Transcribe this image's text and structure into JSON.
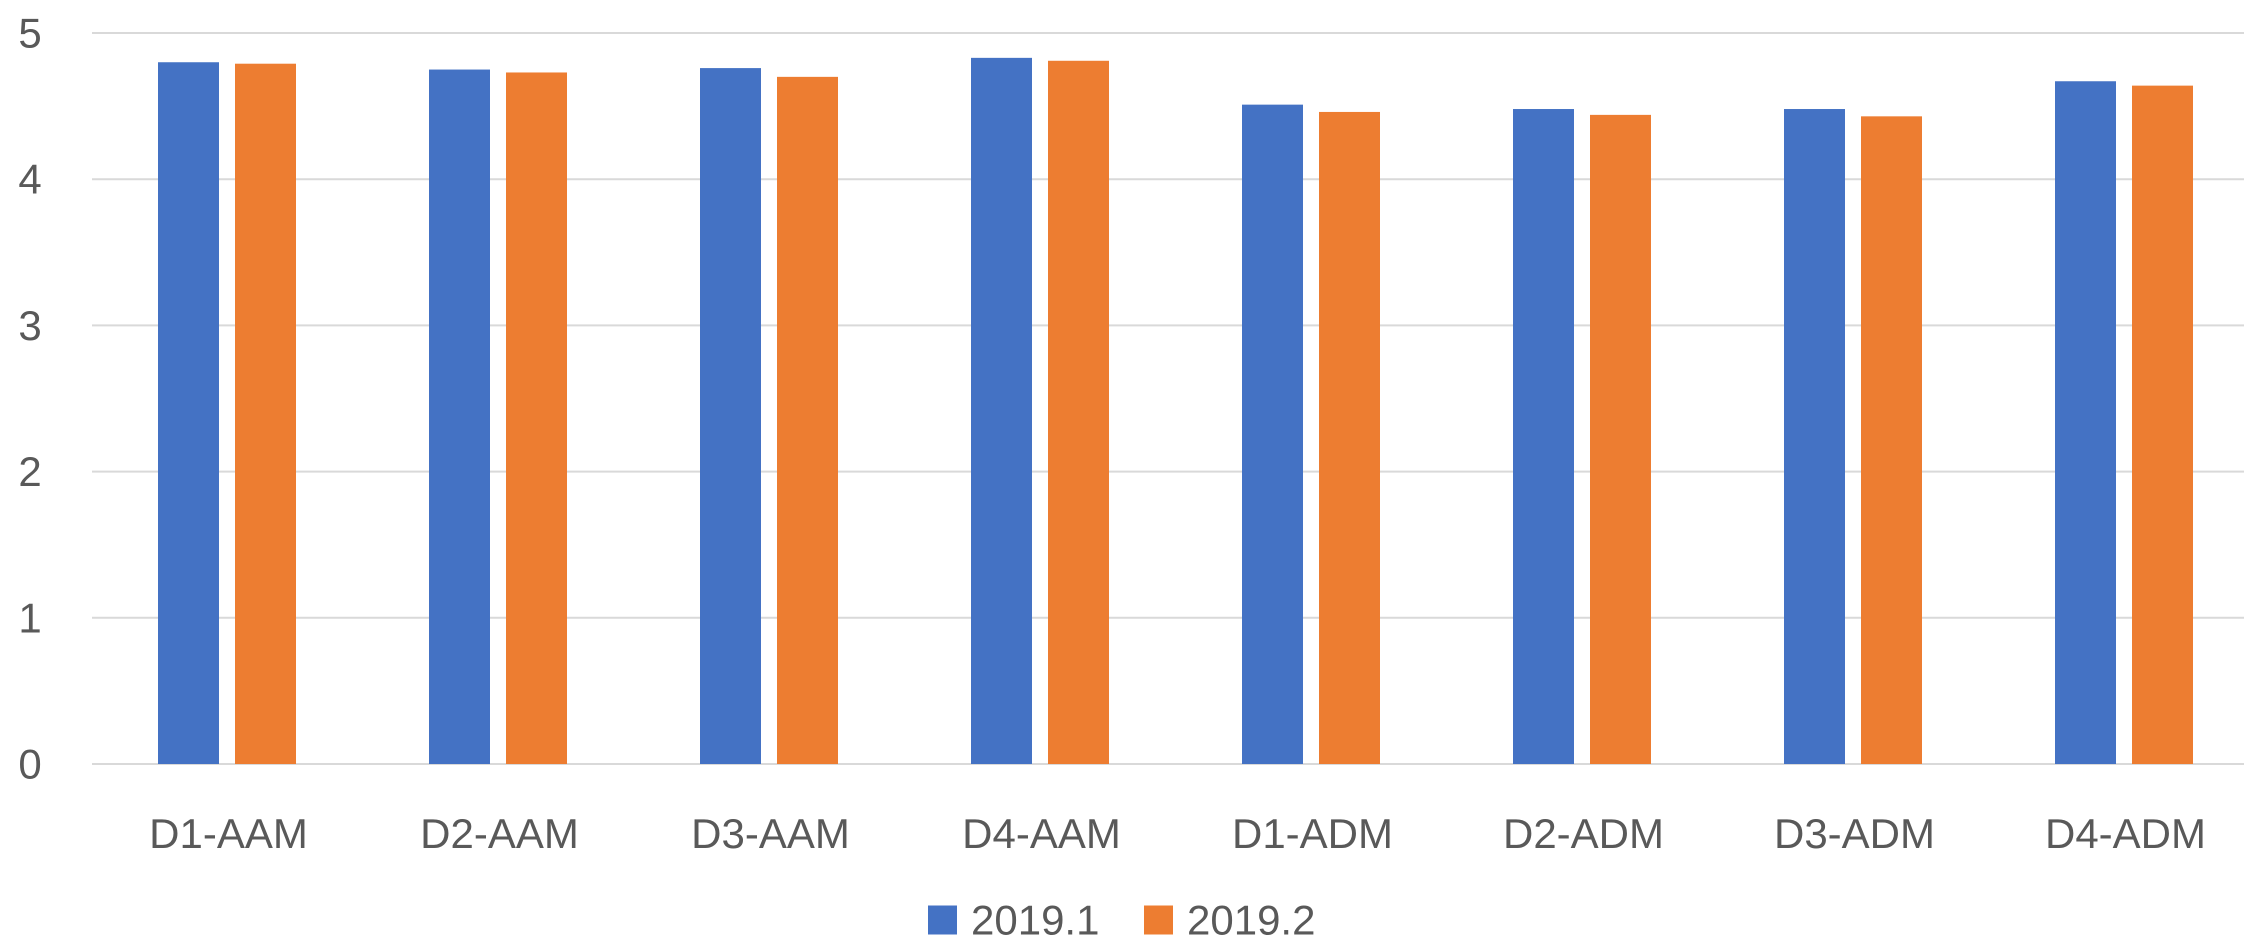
{
  "chart_data": {
    "type": "bar",
    "categories": [
      "D1-AAM",
      "D2-AAM",
      "D3-AAM",
      "D4-AAM",
      "D1-ADM",
      "D2-ADM",
      "D3-ADM",
      "D4-ADM"
    ],
    "series": [
      {
        "name": "2019.1",
        "color": "#4472c4",
        "values": [
          4.8,
          4.75,
          4.76,
          4.83,
          4.51,
          4.48,
          4.48,
          4.67
        ]
      },
      {
        "name": "2019.2",
        "color": "#ed7d31",
        "values": [
          4.79,
          4.73,
          4.7,
          4.81,
          4.46,
          4.44,
          4.43,
          4.64
        ]
      }
    ],
    "title": "",
    "xlabel": "",
    "ylabel": "",
    "ylim": [
      0,
      5
    ],
    "yticks": [
      "0",
      "1",
      "2",
      "3",
      "4",
      "5"
    ],
    "grid": true,
    "legend": "bottom"
  }
}
